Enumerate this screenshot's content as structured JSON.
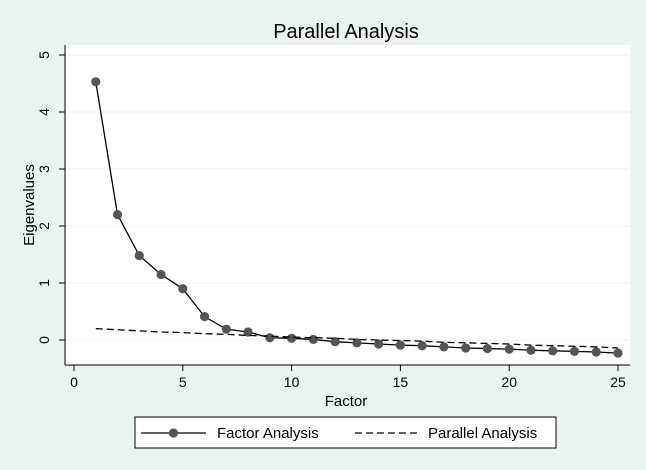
{
  "chart_data": {
    "type": "line",
    "title": "Parallel Analysis",
    "xlabel": "Factor",
    "ylabel": "Eigenvalues",
    "xlim": [
      0,
      25
    ],
    "ylim": [
      -0.25,
      5.2
    ],
    "xticks": [
      0,
      5,
      10,
      15,
      20,
      25
    ],
    "yticks": [
      0,
      1,
      2,
      3,
      4,
      5
    ],
    "grid": true,
    "legend_position": "bottom",
    "series": [
      {
        "name": "Factor Analysis",
        "style": "line-marker",
        "color": "#000000",
        "marker_color": "#555555",
        "x": [
          1,
          2,
          3,
          4,
          5,
          6,
          7,
          8,
          9,
          10,
          11,
          12,
          13,
          14,
          15,
          16,
          17,
          18,
          19,
          20,
          21,
          22,
          23,
          24,
          25
        ],
        "y": [
          4.53,
          2.2,
          1.48,
          1.15,
          0.9,
          0.41,
          0.19,
          0.14,
          0.04,
          0.03,
          0.01,
          -0.03,
          -0.05,
          -0.07,
          -0.09,
          -0.1,
          -0.12,
          -0.14,
          -0.15,
          -0.16,
          -0.18,
          -0.19,
          -0.2,
          -0.21,
          -0.23
        ]
      },
      {
        "name": "Parallel Analysis",
        "style": "dashed",
        "color": "#000000",
        "x": [
          1,
          2,
          3,
          4,
          5,
          6,
          7,
          8,
          9,
          10,
          11,
          12,
          13,
          14,
          15,
          16,
          17,
          18,
          19,
          20,
          21,
          22,
          23,
          24,
          25
        ],
        "y": [
          0.2,
          0.18,
          0.16,
          0.14,
          0.13,
          0.11,
          0.1,
          0.08,
          0.07,
          0.05,
          0.04,
          0.03,
          0.01,
          0.0,
          -0.01,
          -0.02,
          -0.04,
          -0.05,
          -0.06,
          -0.07,
          -0.09,
          -0.1,
          -0.11,
          -0.12,
          -0.14
        ]
      }
    ]
  }
}
